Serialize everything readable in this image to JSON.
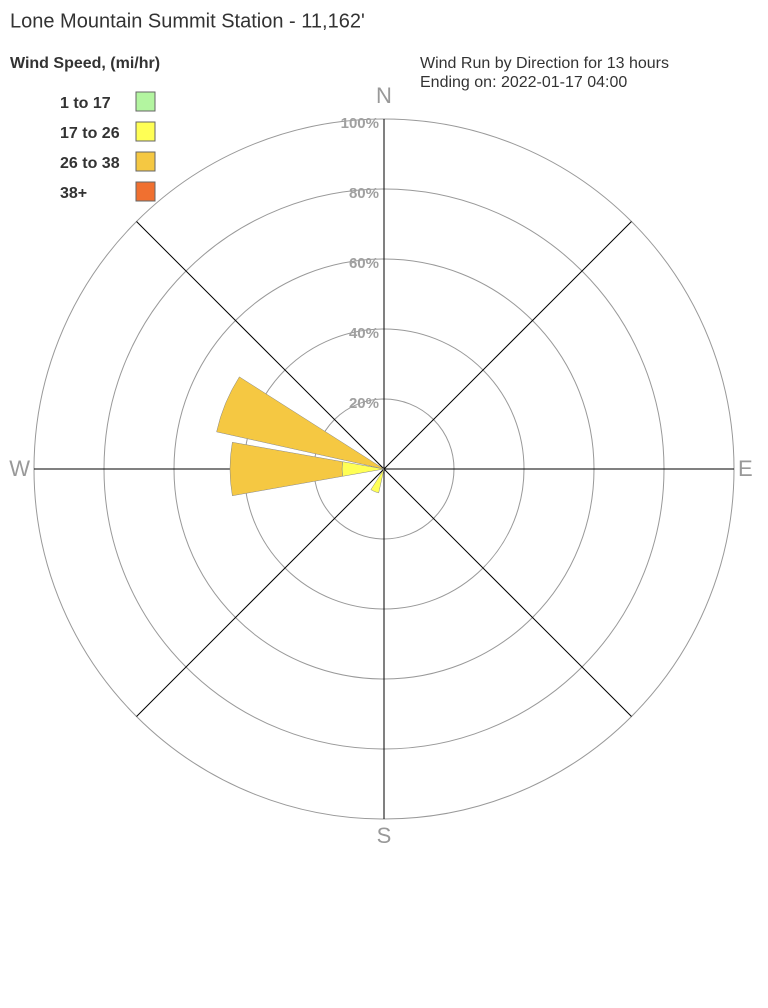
{
  "chart_data": {
    "type": "windrose",
    "title": "Lone Mountain Summit Station - 11,162'",
    "legend_title": "Wind Speed, (mi/hr)",
    "subtitle": "Wind Run by Direction for 13 hours",
    "subtitle2": "Ending on: 2022-01-17 04:00",
    "compass": [
      "N",
      "E",
      "S",
      "W"
    ],
    "angles": [
      0,
      22.5,
      45,
      67.5,
      90,
      112.5,
      135,
      157.5,
      180,
      202.5,
      225,
      247.5,
      270,
      292.5,
      315,
      337.5
    ],
    "rlim": [
      0,
      100
    ],
    "rticks": [
      {
        "value": 20,
        "label": "20%"
      },
      {
        "value": 40,
        "label": "40%"
      },
      {
        "value": 60,
        "label": "60%"
      },
      {
        "value": 80,
        "label": "80%"
      },
      {
        "value": 100,
        "label": "100%"
      }
    ],
    "series": [
      {
        "name": "1 to 17",
        "color": "#b3f5a0",
        "values": [
          0,
          0,
          0,
          0,
          0,
          0,
          0,
          0,
          0,
          0,
          0,
          0,
          0,
          0,
          0,
          0
        ]
      },
      {
        "name": "17 to 26",
        "color": "#ffff55",
        "values": [
          0,
          0,
          0,
          0,
          0,
          0,
          0,
          0,
          0,
          7,
          0,
          0,
          12,
          0,
          0,
          0
        ]
      },
      {
        "name": "26 to 38",
        "color": "#f5c842",
        "values": [
          0,
          0,
          0,
          0,
          0,
          0,
          0,
          0,
          0,
          0,
          0,
          0,
          32,
          49,
          0,
          0
        ]
      },
      {
        "name": "38+",
        "color": "#f07030",
        "values": [
          0,
          0,
          0,
          0,
          0,
          0,
          0,
          0,
          0,
          0,
          0,
          0,
          0,
          0,
          0,
          0
        ]
      }
    ]
  }
}
